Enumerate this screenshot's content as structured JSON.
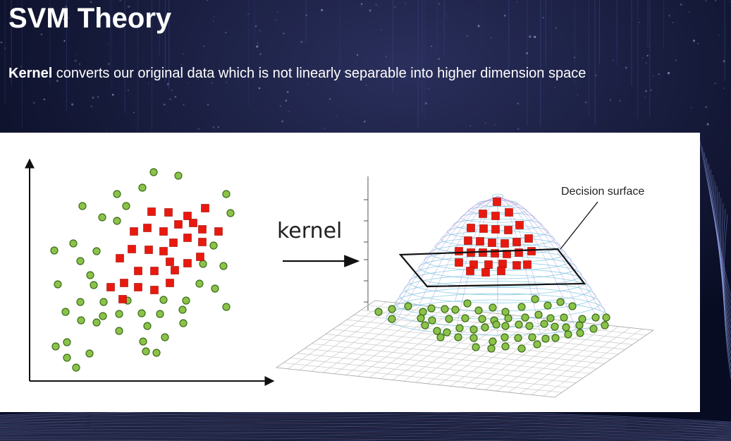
{
  "slide": {
    "title": "SVM Theory",
    "subtitle_bold": "Kernel",
    "subtitle_rest": " converts our original data which is not linearly separable into higher dimension space"
  },
  "diagram": {
    "arrow_label": "kernel",
    "surface_label": "Decision surface",
    "colors": {
      "class_circle": "#8bc34a",
      "class_square": "#e8190f",
      "mesh": "#7fc7e0",
      "background": "#0c1330",
      "panel": "#ffffff"
    }
  }
}
